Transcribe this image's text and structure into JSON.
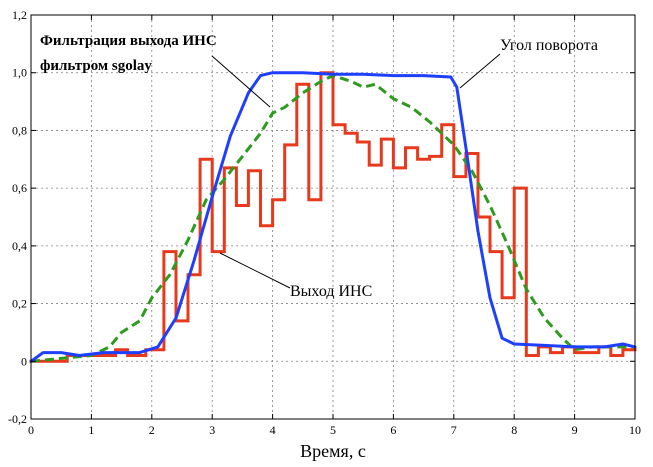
{
  "chart_data": {
    "type": "line",
    "xlabel": "Время, с",
    "xlim": [
      0,
      10
    ],
    "ylim": [
      -0.2,
      1.2
    ],
    "xticks": [
      0,
      1,
      2,
      3,
      4,
      5,
      6,
      7,
      8,
      9,
      10
    ],
    "yticks": [
      -0.2,
      0,
      0.2,
      0.4,
      0.6,
      0.8,
      1.0,
      1.2
    ],
    "xtick_labels": [
      "0",
      "1",
      "2",
      "3",
      "4",
      "5",
      "6",
      "7",
      "8",
      "9",
      "10"
    ],
    "ytick_labels": [
      "-0,2",
      "0",
      "0,2",
      "0,4",
      "0,6",
      "0,8",
      "1,0",
      "1,2"
    ],
    "grid": true,
    "series": [
      {
        "name": "Угол поворота",
        "color": "#1f3fff",
        "style": "solid",
        "points": [
          [
            0,
            0
          ],
          [
            0.2,
            0.03
          ],
          [
            0.5,
            0.03
          ],
          [
            0.8,
            0.02
          ],
          [
            1.2,
            0.03
          ],
          [
            1.8,
            0.03
          ],
          [
            2.1,
            0.05
          ],
          [
            2.4,
            0.15
          ],
          [
            2.7,
            0.35
          ],
          [
            3.0,
            0.57
          ],
          [
            3.3,
            0.78
          ],
          [
            3.6,
            0.93
          ],
          [
            3.8,
            0.99
          ],
          [
            4.0,
            1.0
          ],
          [
            4.5,
            1.0
          ],
          [
            5.0,
            0.995
          ],
          [
            5.5,
            0.995
          ],
          [
            6.0,
            0.99
          ],
          [
            6.5,
            0.99
          ],
          [
            6.95,
            0.985
          ],
          [
            7.05,
            0.95
          ],
          [
            7.2,
            0.74
          ],
          [
            7.4,
            0.45
          ],
          [
            7.6,
            0.22
          ],
          [
            7.8,
            0.08
          ],
          [
            8.0,
            0.06
          ],
          [
            8.5,
            0.055
          ],
          [
            9.0,
            0.05
          ],
          [
            9.5,
            0.05
          ],
          [
            9.8,
            0.06
          ],
          [
            10,
            0.05
          ]
        ]
      },
      {
        "name": "Фильтрация выхода ИНС фильтром sgolay",
        "color": "#2e9a1f",
        "style": "dashed",
        "points": [
          [
            0,
            0
          ],
          [
            0.5,
            0.01
          ],
          [
            1.0,
            0.02
          ],
          [
            1.3,
            0.05
          ],
          [
            1.5,
            0.1
          ],
          [
            1.8,
            0.14
          ],
          [
            2.0,
            0.22
          ],
          [
            2.3,
            0.3
          ],
          [
            2.6,
            0.42
          ],
          [
            2.9,
            0.56
          ],
          [
            3.2,
            0.63
          ],
          [
            3.5,
            0.71
          ],
          [
            3.8,
            0.79
          ],
          [
            4.0,
            0.86
          ],
          [
            4.2,
            0.88
          ],
          [
            4.5,
            0.93
          ],
          [
            4.8,
            0.97
          ],
          [
            5.0,
            0.99
          ],
          [
            5.3,
            0.97
          ],
          [
            5.5,
            0.95
          ],
          [
            5.7,
            0.96
          ],
          [
            6.0,
            0.91
          ],
          [
            6.3,
            0.88
          ],
          [
            6.6,
            0.83
          ],
          [
            7.0,
            0.75
          ],
          [
            7.3,
            0.66
          ],
          [
            7.6,
            0.54
          ],
          [
            7.9,
            0.4
          ],
          [
            8.2,
            0.25
          ],
          [
            8.5,
            0.15
          ],
          [
            8.8,
            0.08
          ],
          [
            9.0,
            0.04
          ],
          [
            9.3,
            0.05
          ],
          [
            9.6,
            0.05
          ],
          [
            10,
            0.05
          ]
        ]
      },
      {
        "name": "Выход ИНС",
        "color": "#e8391d",
        "style": "steps",
        "points": [
          [
            0,
            0
          ],
          [
            0.6,
            0
          ],
          [
            0.6,
            0.02
          ],
          [
            1.4,
            0.02
          ],
          [
            1.4,
            0.04
          ],
          [
            1.6,
            0.04
          ],
          [
            1.6,
            0.02
          ],
          [
            1.9,
            0.02
          ],
          [
            1.9,
            0.04
          ],
          [
            2.2,
            0.04
          ],
          [
            2.2,
            0.38
          ],
          [
            2.4,
            0.38
          ],
          [
            2.4,
            0.14
          ],
          [
            2.6,
            0.14
          ],
          [
            2.6,
            0.3
          ],
          [
            2.8,
            0.3
          ],
          [
            2.8,
            0.7
          ],
          [
            3.0,
            0.7
          ],
          [
            3.0,
            0.38
          ],
          [
            3.2,
            0.38
          ],
          [
            3.2,
            0.67
          ],
          [
            3.4,
            0.67
          ],
          [
            3.4,
            0.54
          ],
          [
            3.6,
            0.54
          ],
          [
            3.6,
            0.66
          ],
          [
            3.8,
            0.66
          ],
          [
            3.8,
            0.47
          ],
          [
            4.0,
            0.47
          ],
          [
            4.0,
            0.56
          ],
          [
            4.2,
            0.56
          ],
          [
            4.2,
            0.75
          ],
          [
            4.4,
            0.75
          ],
          [
            4.4,
            0.96
          ],
          [
            4.6,
            0.96
          ],
          [
            4.6,
            0.56
          ],
          [
            4.8,
            0.56
          ],
          [
            4.8,
            1.0
          ],
          [
            5.0,
            1.0
          ],
          [
            5.0,
            0.82
          ],
          [
            5.2,
            0.82
          ],
          [
            5.2,
            0.79
          ],
          [
            5.4,
            0.79
          ],
          [
            5.4,
            0.76
          ],
          [
            5.6,
            0.76
          ],
          [
            5.6,
            0.68
          ],
          [
            5.8,
            0.68
          ],
          [
            5.8,
            0.77
          ],
          [
            6.0,
            0.77
          ],
          [
            6.0,
            0.67
          ],
          [
            6.2,
            0.67
          ],
          [
            6.2,
            0.74
          ],
          [
            6.4,
            0.74
          ],
          [
            6.4,
            0.7
          ],
          [
            6.6,
            0.7
          ],
          [
            6.6,
            0.71
          ],
          [
            6.8,
            0.71
          ],
          [
            6.8,
            0.82
          ],
          [
            7.0,
            0.82
          ],
          [
            7.0,
            0.64
          ],
          [
            7.2,
            0.64
          ],
          [
            7.2,
            0.72
          ],
          [
            7.4,
            0.72
          ],
          [
            7.4,
            0.5
          ],
          [
            7.6,
            0.5
          ],
          [
            7.6,
            0.38
          ],
          [
            7.8,
            0.38
          ],
          [
            7.8,
            0.22
          ],
          [
            8.0,
            0.22
          ],
          [
            8.0,
            0.6
          ],
          [
            8.2,
            0.6
          ],
          [
            8.2,
            0.02
          ],
          [
            8.4,
            0.02
          ],
          [
            8.4,
            0.05
          ],
          [
            8.6,
            0.05
          ],
          [
            8.6,
            0.03
          ],
          [
            8.8,
            0.03
          ],
          [
            8.8,
            0.05
          ],
          [
            9.0,
            0.05
          ],
          [
            9.0,
            0.03
          ],
          [
            9.4,
            0.03
          ],
          [
            9.4,
            0.05
          ],
          [
            9.6,
            0.05
          ],
          [
            9.6,
            0.02
          ],
          [
            9.8,
            0.02
          ],
          [
            9.8,
            0.04
          ],
          [
            10,
            0.04
          ]
        ]
      }
    ],
    "annotations": [
      {
        "id": "filter-line1",
        "text": "Фильтрация выхода ИНС"
      },
      {
        "id": "filter-line2",
        "text": "фильтром sgolay"
      },
      {
        "id": "angle",
        "text": "Угол поворота"
      },
      {
        "id": "ins",
        "text": "Выход ИНС"
      }
    ]
  }
}
